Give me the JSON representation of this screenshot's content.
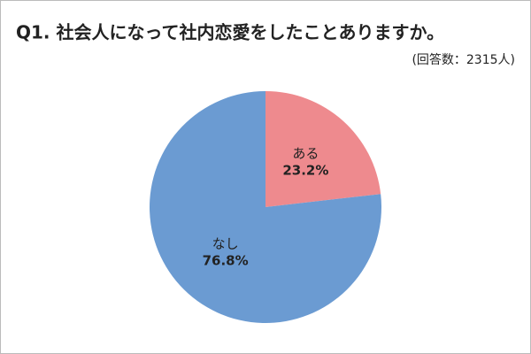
{
  "chart_data": {
    "type": "pie",
    "title": "Q1. 社会人になって社内恋愛をしたことありますか。",
    "subtitle": "(回答数：2315人)",
    "categories": [
      "ある",
      "なし"
    ],
    "values": [
      23.2,
      76.8
    ],
    "value_labels": [
      "23.2%",
      "76.8%"
    ],
    "colors": [
      "#ee8a8e",
      "#6b9bd2"
    ]
  }
}
